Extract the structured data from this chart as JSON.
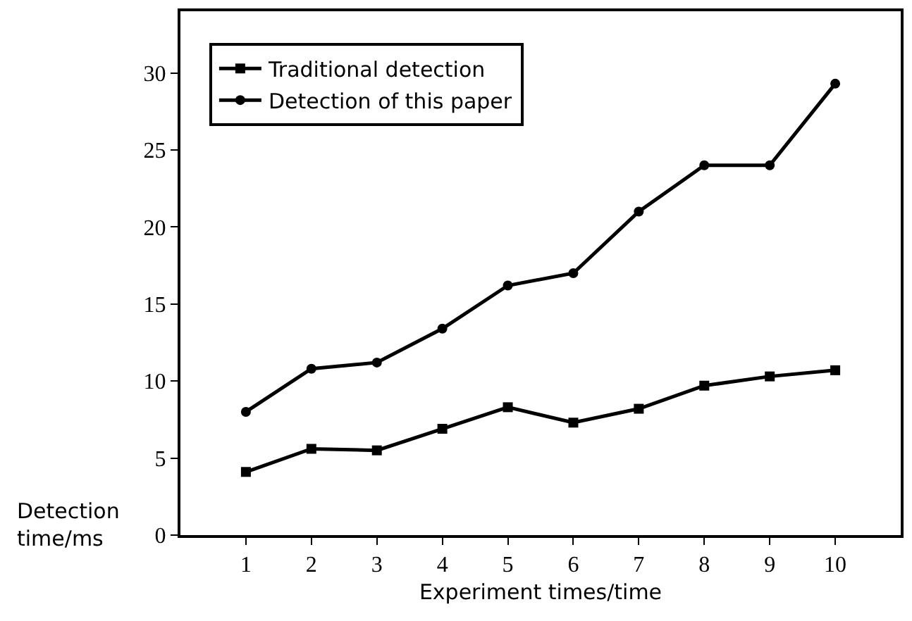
{
  "chart_data": {
    "type": "line",
    "xlabel": "Experiment times/time",
    "ylabel": "Detection time/ms",
    "x": [
      1,
      2,
      3,
      4,
      5,
      6,
      7,
      8,
      9,
      10
    ],
    "series": [
      {
        "name": "Traditional detection",
        "color": "#000000",
        "marker": "square",
        "values": [
          4.1,
          5.6,
          5.5,
          6.9,
          8.3,
          7.3,
          8.2,
          9.7,
          10.3,
          10.7
        ]
      },
      {
        "name": "Detection of this paper",
        "color": "#000000",
        "marker": "circle",
        "values": [
          8.0,
          10.8,
          11.2,
          13.4,
          16.2,
          17.0,
          21.0,
          24.0,
          24.0,
          29.3
        ]
      }
    ],
    "xlim": [
      0,
      11
    ],
    "xticks": [
      1,
      2,
      3,
      4,
      5,
      6,
      7,
      8,
      9,
      10
    ],
    "ylim": [
      0,
      34
    ],
    "yticks": [
      0,
      5,
      10,
      15,
      20,
      25,
      30
    ],
    "grid": false,
    "legend": "top left",
    "line_style": "solid"
  }
}
